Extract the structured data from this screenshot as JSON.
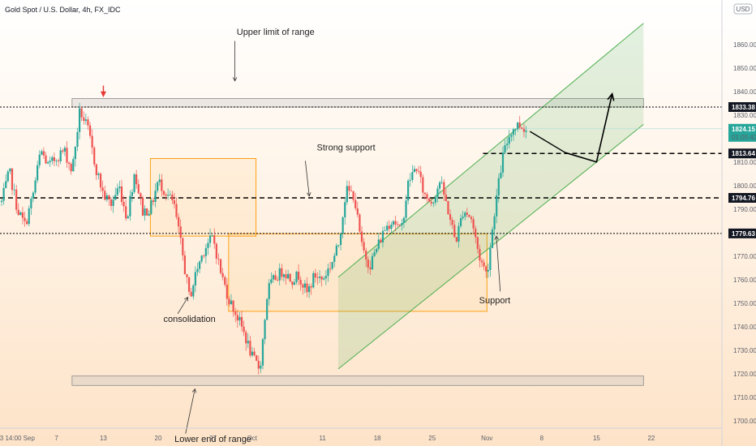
{
  "header": {
    "symbol": "Gold Spot / U.S. Dollar, 4h, FX_IDC",
    "currency": "USD"
  },
  "colors": {
    "bullish": "#26a69a",
    "bearish": "#ef5350",
    "channel": "#4caf50",
    "box_orange": "#ff9800",
    "background_top": "#ffffff",
    "background_bottom": "#fde6cd"
  },
  "chart_data": {
    "type": "candlestick",
    "yaxis": {
      "ylim": [
        1692,
        1872
      ],
      "ticks": [
        1700,
        1710,
        1720,
        1730,
        1740,
        1750,
        1760,
        1770,
        1780,
        1790,
        1800,
        1810,
        1820,
        1830,
        1840,
        1850,
        1860
      ]
    },
    "xaxis": {
      "ticks": [
        {
          "label": "3",
          "day": 0
        },
        {
          "label": "14:00",
          "day": 1.5
        },
        {
          "label": "Sep",
          "day": 3.5
        },
        {
          "label": "7",
          "day": 7
        },
        {
          "label": "13",
          "day": 13
        },
        {
          "label": "20",
          "day": 20
        },
        {
          "label": "27",
          "day": 27
        },
        {
          "label": "Oct",
          "day": 32
        },
        {
          "label": "11",
          "day": 41
        },
        {
          "label": "18",
          "day": 48
        },
        {
          "label": "25",
          "day": 55
        },
        {
          "label": "Nov",
          "day": 62
        },
        {
          "label": "8",
          "day": 69
        },
        {
          "label": "15",
          "day": 76
        },
        {
          "label": "22",
          "day": 83
        }
      ]
    },
    "path_points": [
      [
        0,
        1793
      ],
      [
        1,
        1806
      ],
      [
        2,
        1790
      ],
      [
        3,
        1783
      ],
      [
        4,
        1796
      ],
      [
        5,
        1815
      ],
      [
        6,
        1808
      ],
      [
        7,
        1812
      ],
      [
        8,
        1815
      ],
      [
        9,
        1806
      ],
      [
        10,
        1832
      ],
      [
        11,
        1824
      ],
      [
        12,
        1808
      ],
      [
        13,
        1796
      ],
      [
        14,
        1792
      ],
      [
        15,
        1800
      ],
      [
        16,
        1786
      ],
      [
        17,
        1806
      ],
      [
        18,
        1789
      ],
      [
        19,
        1790
      ],
      [
        20,
        1802
      ],
      [
        21,
        1797
      ],
      [
        22,
        1792
      ],
      [
        23,
        1773
      ],
      [
        24,
        1752
      ],
      [
        25,
        1765
      ],
      [
        26,
        1774
      ],
      [
        27,
        1778
      ],
      [
        28,
        1763
      ],
      [
        29,
        1752
      ],
      [
        30,
        1745
      ],
      [
        31,
        1737
      ],
      [
        32,
        1727
      ],
      [
        33,
        1722
      ],
      [
        34,
        1756
      ],
      [
        35,
        1761
      ],
      [
        36,
        1764
      ],
      [
        37,
        1760
      ],
      [
        38,
        1762
      ],
      [
        39,
        1754
      ],
      [
        40,
        1762
      ],
      [
        41,
        1760
      ],
      [
        42,
        1766
      ],
      [
        43,
        1774
      ],
      [
        44,
        1798
      ],
      [
        45,
        1796
      ],
      [
        46,
        1774
      ],
      [
        47,
        1766
      ],
      [
        48,
        1774
      ],
      [
        49,
        1782
      ],
      [
        50,
        1786
      ],
      [
        51,
        1780
      ],
      [
        52,
        1802
      ],
      [
        53,
        1808
      ],
      [
        54,
        1796
      ],
      [
        55,
        1793
      ],
      [
        56,
        1802
      ],
      [
        57,
        1790
      ],
      [
        58,
        1776
      ],
      [
        59,
        1790
      ],
      [
        60,
        1786
      ],
      [
        61,
        1770
      ],
      [
        62,
        1762
      ],
      [
        63,
        1790
      ],
      [
        64,
        1812
      ],
      [
        65,
        1823
      ],
      [
        66,
        1826
      ],
      [
        67,
        1824
      ]
    ],
    "candle_count": 250,
    "levels": [
      {
        "value": 1833.38,
        "label": "1833.38",
        "style": "dotted"
      },
      {
        "value": 1813.64,
        "label": "1813.64",
        "style": "dashed"
      },
      {
        "value": 1794.76,
        "label": "1794.76",
        "style": "dashed"
      },
      {
        "value": 1779.63,
        "label": "1779.63",
        "style": "dotted"
      }
    ],
    "last_price": {
      "value": 1824.15,
      "label": "1824.15",
      "countdown": "01:05:42"
    },
    "zones": [
      {
        "name": "upper-range-zone",
        "day_start": 9,
        "day_end": 82,
        "y_low": 1833.38,
        "y_high": 1837
      },
      {
        "name": "lower-range-zone",
        "day_start": 9,
        "day_end": 82,
        "y_low": 1715,
        "y_high": 1719
      }
    ],
    "boxes": [
      {
        "name": "consolidation-box-1",
        "day_start": 19,
        "day_end": 32.5,
        "y_low": 1778.5,
        "y_high": 1811.5
      },
      {
        "name": "consolidation-box-2",
        "day_start": 29,
        "day_end": 62,
        "y_low": 1746.5,
        "y_high": 1779.5
      }
    ],
    "channel": {
      "lower": [
        [
          43,
          1722
        ],
        [
          82,
          1826
        ]
      ],
      "upper": [
        [
          43,
          1761
        ],
        [
          82,
          1869
        ]
      ]
    },
    "projection": [
      [
        72,
        1814
      ],
      [
        76,
        1810
      ],
      [
        78,
        1839
      ]
    ],
    "annotations": [
      {
        "text": "Upper limit of range",
        "day": 35,
        "y": 1864
      },
      {
        "text": "Strong support",
        "day": 44,
        "y": 1815
      },
      {
        "text": "Support",
        "day": 63,
        "y": 1750
      },
      {
        "text": "consolidation",
        "day": 24,
        "y": 1742
      },
      {
        "text": "Lower end of range",
        "day": 27,
        "y": 1691
      }
    ]
  }
}
